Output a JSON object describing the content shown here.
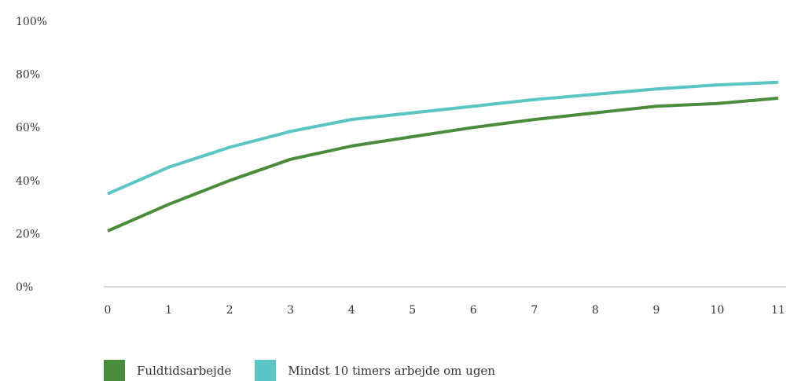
{
  "chart_data": {
    "type": "line",
    "title": "",
    "xlabel": "",
    "ylabel": "",
    "x": [
      0,
      1,
      2,
      3,
      4,
      5,
      6,
      7,
      8,
      9,
      10,
      11
    ],
    "x_tick_labels": [
      "0",
      "1",
      "2",
      "3",
      "4",
      "5",
      "6",
      "7",
      "8",
      "9",
      "10",
      "11"
    ],
    "ylim": [
      0,
      100
    ],
    "y_ticks": [
      0,
      20,
      40,
      60,
      80,
      100
    ],
    "y_tick_labels": [
      "0%",
      "20%",
      "40%",
      "60%",
      "80%",
      "100%"
    ],
    "grid": false,
    "legend_position": "bottom-left",
    "series": [
      {
        "name": "Fuldtidsarbejde",
        "color": "#4a8c3c",
        "values": [
          21,
          31,
          40,
          48,
          53,
          56.5,
          60,
          63,
          65.5,
          68,
          69,
          71
        ]
      },
      {
        "name": "Mindst 10 timers arbejde om ugen",
        "color": "#5bc4c4",
        "values": [
          35,
          45,
          52.5,
          58.5,
          63,
          65.5,
          68,
          70.5,
          72.5,
          74.5,
          76,
          77
        ]
      }
    ]
  }
}
